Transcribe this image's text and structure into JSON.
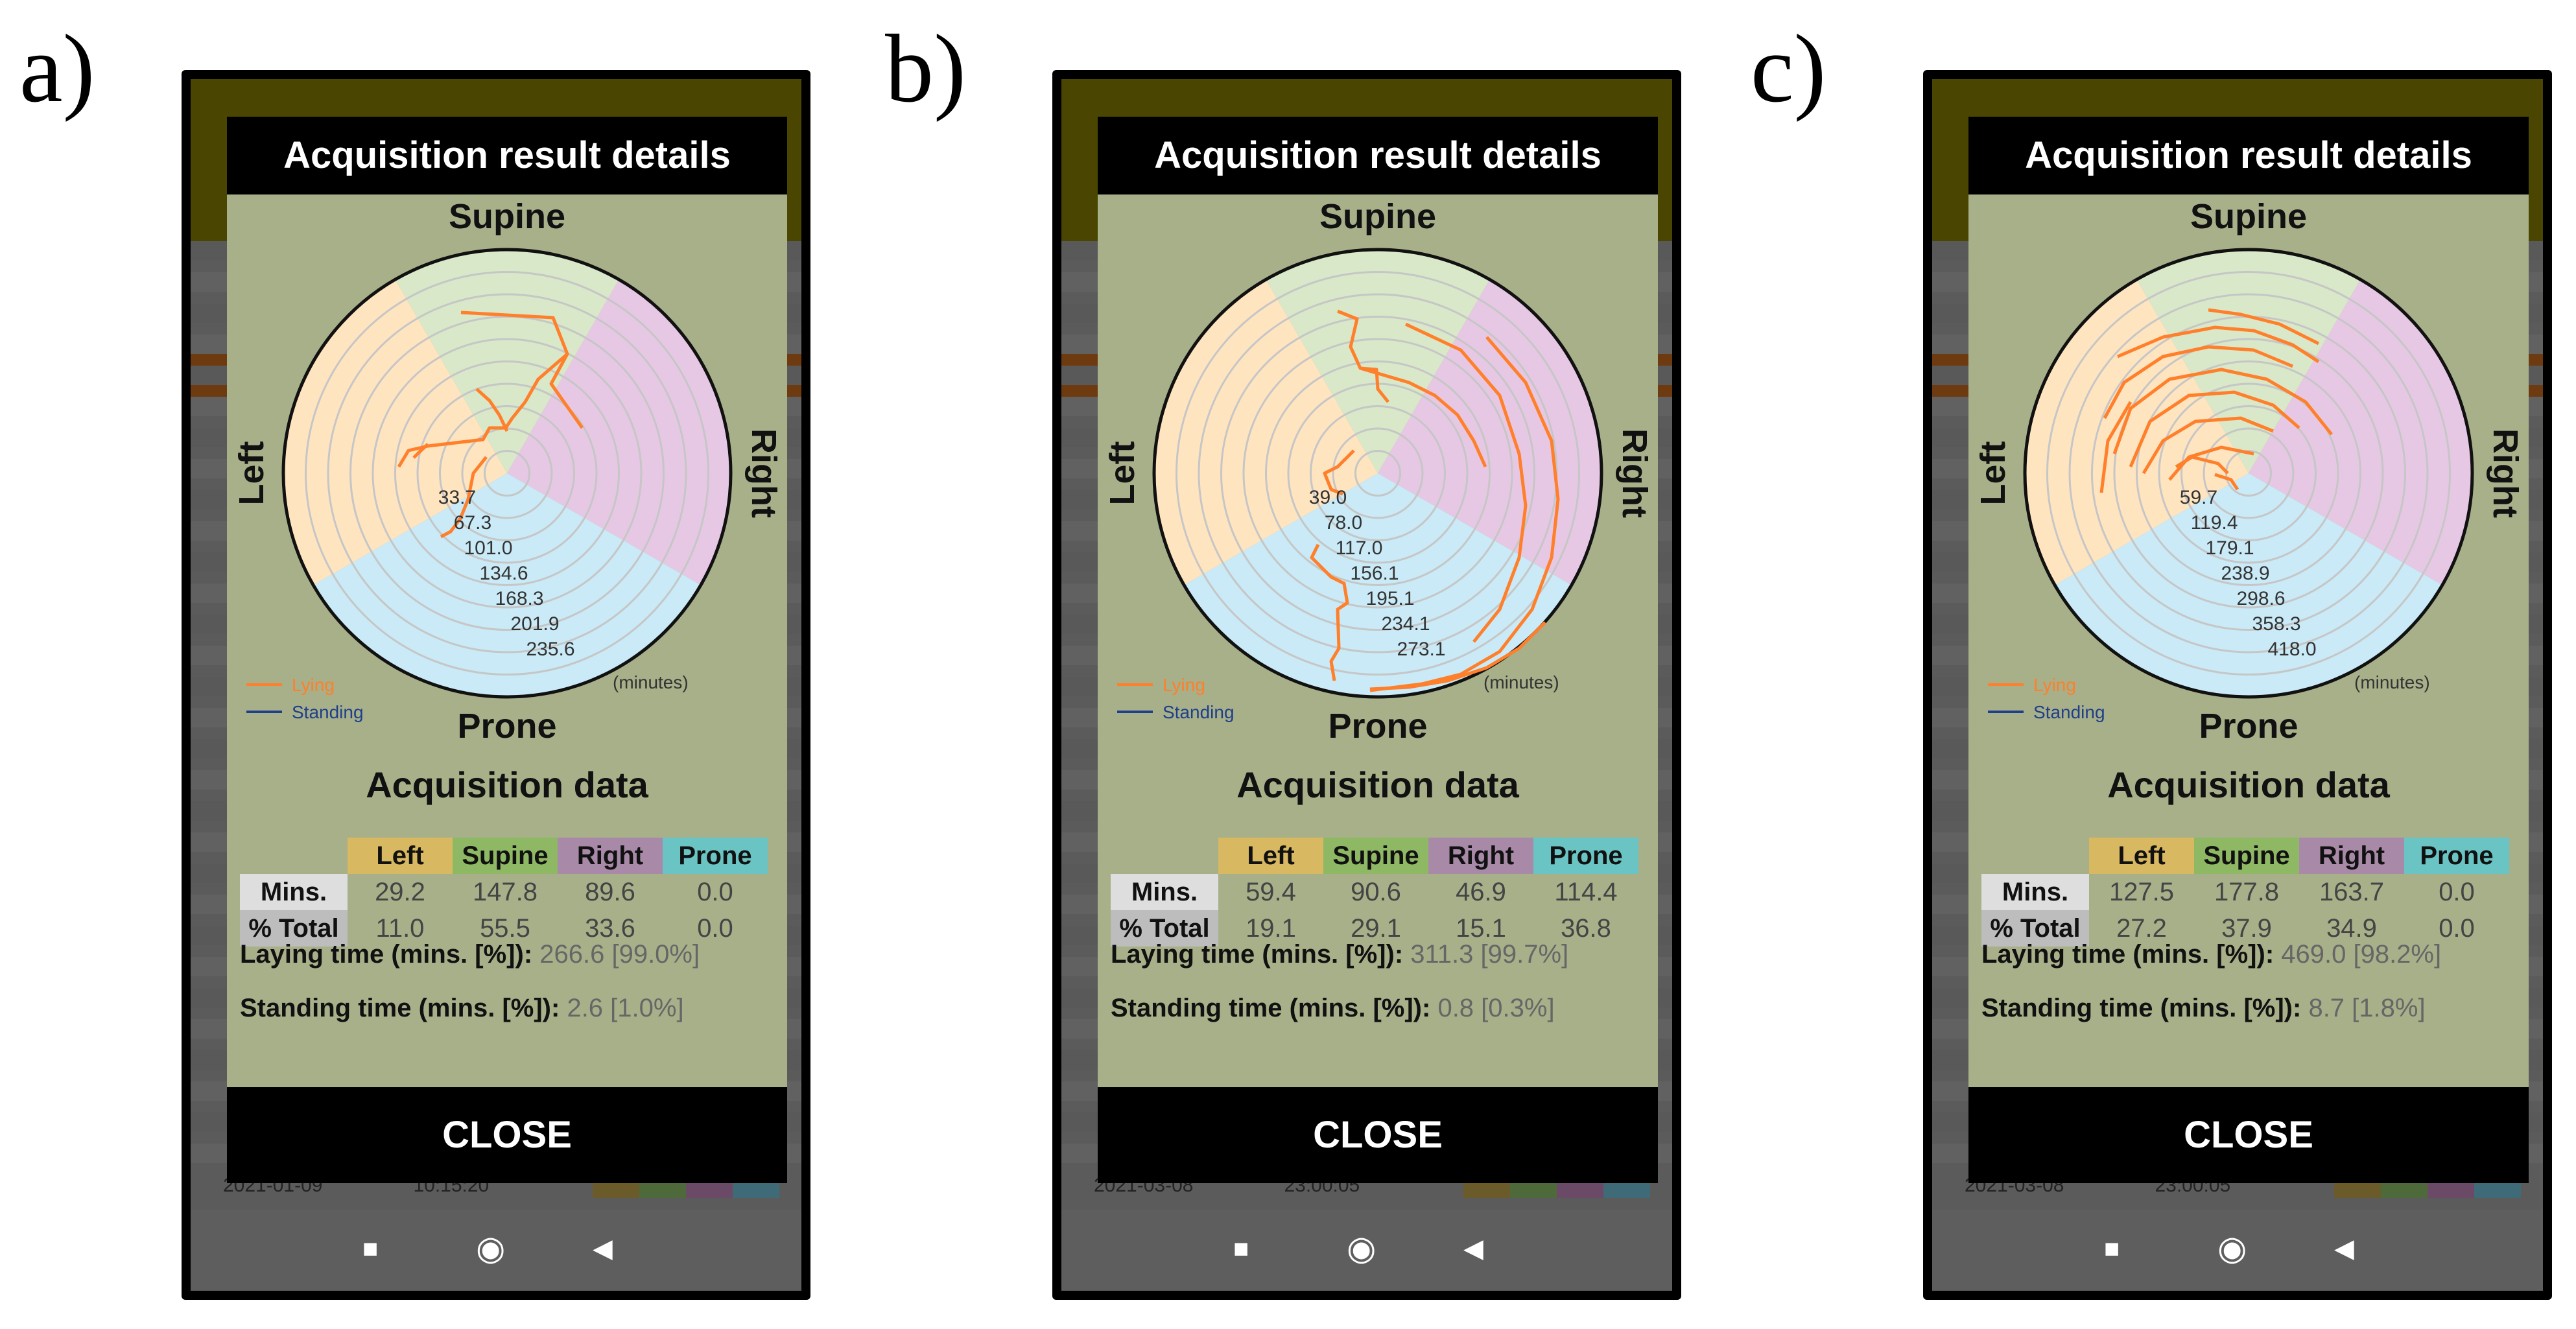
{
  "colors": {
    "left": "#ffe4c0",
    "supine": "#d8e8c8",
    "right": "#e6c8e4",
    "prone": "#c9eaf6",
    "lying_line": "#ff7f2a",
    "standing_line": "#1f3f8a",
    "dialog_bg": "#a8b08a"
  },
  "panels": [
    {
      "label": "a)",
      "header": "Acquisition result details",
      "chart_data": {
        "type": "polar",
        "directions": {
          "top": "Supine",
          "right": "Right",
          "bottom": "Prone",
          "left": "Left"
        },
        "radial_labels": [
          "33.7",
          "67.3",
          "101.0",
          "134.6",
          "168.3",
          "201.9",
          "235.6"
        ],
        "unit_label": "(minutes)",
        "legend": [
          "Lying",
          "Standing"
        ]
      },
      "acq_title": "Acquisition data",
      "table": {
        "headers": [
          "Left",
          "Supine",
          "Right",
          "Prone"
        ],
        "row_labels": [
          "Mins.",
          "% Total"
        ],
        "mins": [
          "29.2",
          "147.8",
          "89.6",
          "0.0"
        ],
        "pct": [
          "11.0",
          "55.5",
          "33.6",
          "0.0"
        ]
      },
      "laying_label": "Laying time (mins. [%]):",
      "laying_value": " 266.6 [99.0%]",
      "standing_label": "Standing time (mins. [%]):",
      "standing_value": " 2.6 [1.0%]",
      "close": "CLOSE",
      "bg_date": "2021-01-09",
      "bg_time": "10:15:20"
    },
    {
      "label": "b)",
      "header": "Acquisition result details",
      "chart_data": {
        "type": "polar",
        "directions": {
          "top": "Supine",
          "right": "Right",
          "bottom": "Prone",
          "left": "Left"
        },
        "radial_labels": [
          "39.0",
          "78.0",
          "117.0",
          "156.1",
          "195.1",
          "234.1",
          "273.1"
        ],
        "unit_label": "(minutes)",
        "legend": [
          "Lying",
          "Standing"
        ]
      },
      "acq_title": "Acquisition data",
      "table": {
        "headers": [
          "Left",
          "Supine",
          "Right",
          "Prone"
        ],
        "row_labels": [
          "Mins.",
          "% Total"
        ],
        "mins": [
          "59.4",
          "90.6",
          "46.9",
          "114.4"
        ],
        "pct": [
          "19.1",
          "29.1",
          "15.1",
          "36.8"
        ]
      },
      "laying_label": "Laying time (mins. [%]):",
      "laying_value": " 311.3 [99.7%]",
      "standing_label": "Standing time (mins. [%]):",
      "standing_value": " 0.8 [0.3%]",
      "close": "CLOSE",
      "bg_date": "2021-03-08",
      "bg_time": "23:00:05"
    },
    {
      "label": "c)",
      "header": "Acquisition result details",
      "chart_data": {
        "type": "polar",
        "directions": {
          "top": "Supine",
          "right": "Right",
          "bottom": "Prone",
          "left": "Left"
        },
        "radial_labels": [
          "59.7",
          "119.4",
          "179.1",
          "238.9",
          "298.6",
          "358.3",
          "418.0"
        ],
        "unit_label": "(minutes)",
        "legend": [
          "Lying",
          "Standing"
        ]
      },
      "acq_title": "Acquisition data",
      "table": {
        "headers": [
          "Left",
          "Supine",
          "Right",
          "Prone"
        ],
        "row_labels": [
          "Mins.",
          "% Total"
        ],
        "mins": [
          "127.5",
          "177.8",
          "163.7",
          "0.0"
        ],
        "pct": [
          "27.2",
          "37.9",
          "34.9",
          "0.0"
        ]
      },
      "laying_label": "Laying time (mins. [%]):",
      "laying_value": " 469.0 [98.2%]",
      "standing_label": "Standing time (mins. [%]):",
      "standing_value": " 8.7 [1.8%]",
      "close": "CLOSE",
      "bg_date": "2021-03-08",
      "bg_time": "23:00:05"
    }
  ]
}
